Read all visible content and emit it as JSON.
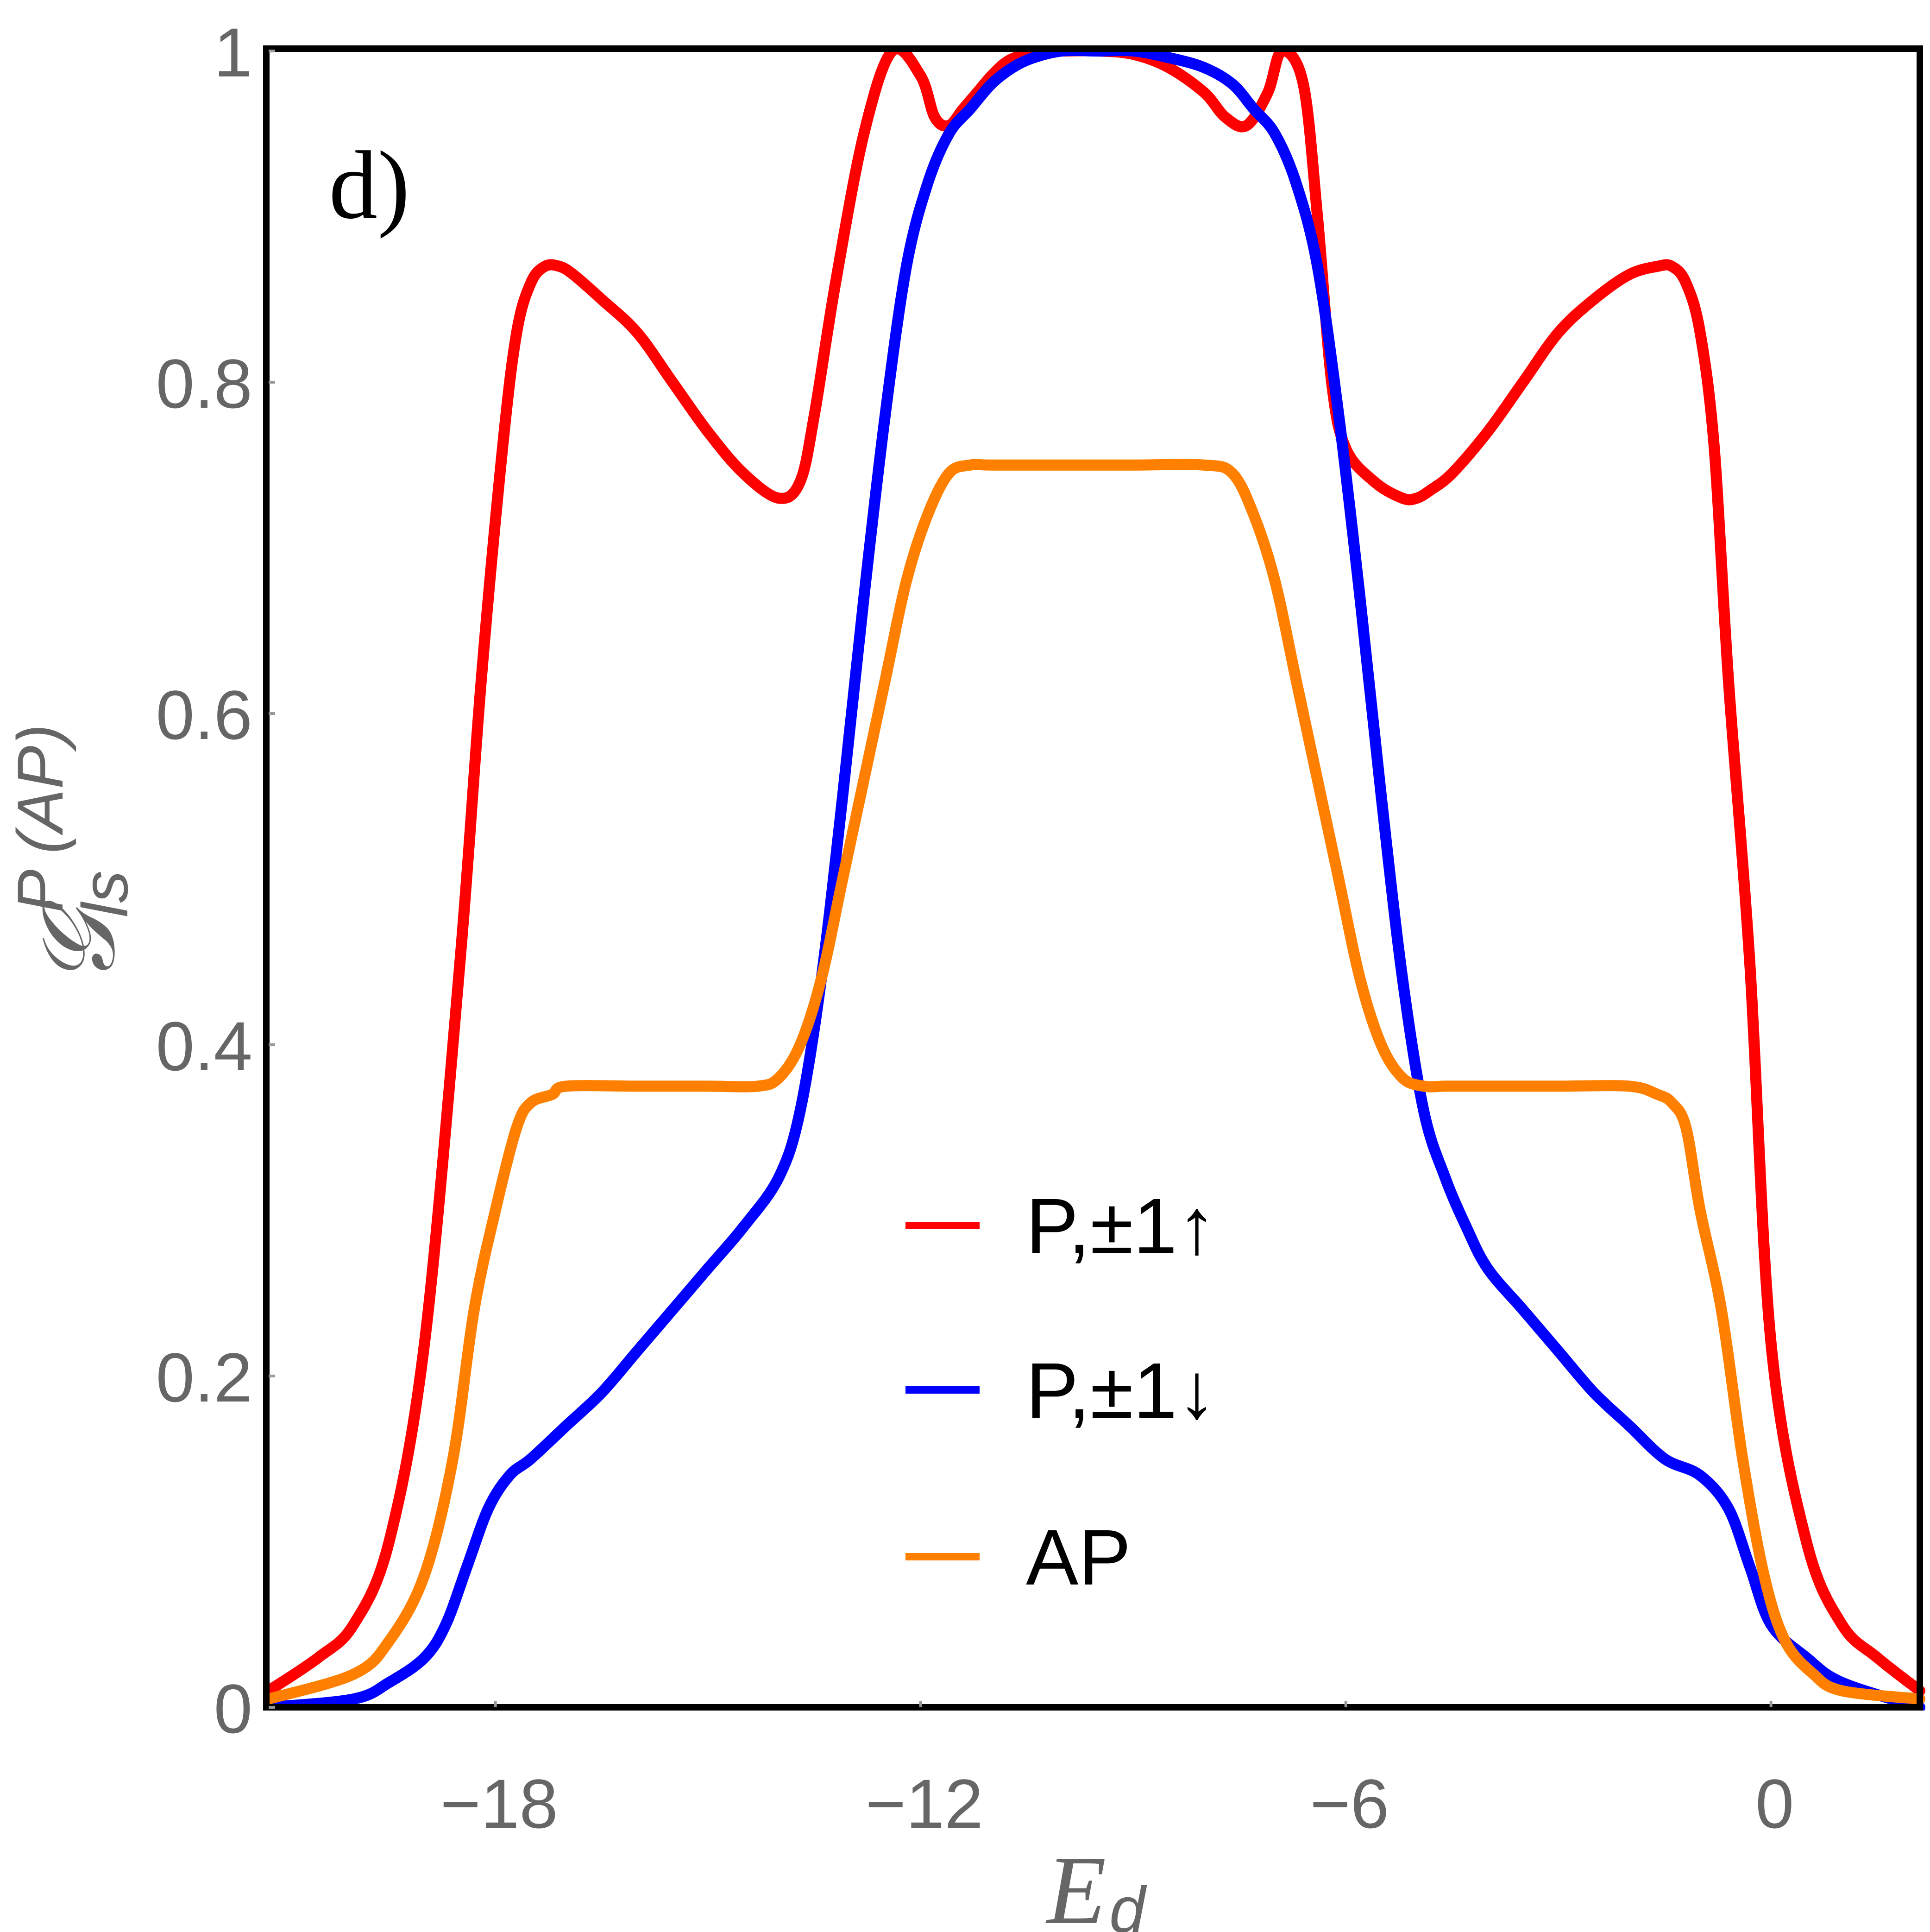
{
  "chart_data": {
    "type": "line",
    "panel_label": "d)",
    "xlabel": {
      "main": "E",
      "sub": "d"
    },
    "ylabel": {
      "main": "𝒢",
      "sub": "ls",
      "sup": "P (AP)"
    },
    "xlim": [
      -21.2,
      2.1
    ],
    "ylim": [
      0,
      1
    ],
    "xticks": [
      -18,
      -12,
      -6,
      0
    ],
    "xtick_labels": [
      "−18",
      "−12",
      "−6",
      "0"
    ],
    "yticks": [
      0,
      0.2,
      0.4,
      0.6,
      0.8,
      1
    ],
    "ytick_labels": [
      "0",
      "0.2",
      "0.4",
      "0.6",
      "0.8",
      "1"
    ],
    "legend_position": "center-bottom",
    "series": [
      {
        "name": "P,±1↑",
        "color": "#ff0000",
        "x": [
          -21.2,
          -20.5,
          -20.0,
          -19.5,
          -19.0,
          -18.5,
          -18.2,
          -17.9,
          -17.7,
          -17.5,
          -17.3,
          -17.1,
          -16.9,
          -16.5,
          -16.0,
          -15.5,
          -15.0,
          -14.5,
          -14.0,
          -13.7,
          -13.5,
          -13.2,
          -12.8,
          -12.4,
          -12.0,
          -11.8,
          -11.6,
          -11.4,
          -11.2,
          -11.0,
          -10.8,
          -10.6,
          -10.3,
          -10.0,
          -9.5,
          -9.0,
          -8.5,
          -8.0,
          -7.7,
          -7.4,
          -7.1,
          -6.9,
          -6.6,
          -6.4,
          -6.2,
          -6.0,
          -5.6,
          -5.2,
          -5.0,
          -4.8,
          -4.5,
          -4.0,
          -3.5,
          -3.0,
          -2.5,
          -2.0,
          -1.6,
          -1.4,
          -1.2,
          -1.0,
          -0.8,
          -0.6,
          -0.3,
          0.0,
          0.5,
          1.0,
          1.5,
          2.1
        ],
        "values": [
          0.01,
          0.03,
          0.05,
          0.1,
          0.22,
          0.45,
          0.62,
          0.76,
          0.83,
          0.86,
          0.87,
          0.87,
          0.865,
          0.85,
          0.83,
          0.8,
          0.77,
          0.745,
          0.73,
          0.74,
          0.78,
          0.86,
          0.95,
          1.0,
          0.985,
          0.96,
          0.955,
          0.965,
          0.975,
          0.985,
          0.993,
          0.997,
          1.0,
          1.0,
          1.0,
          0.998,
          0.99,
          0.975,
          0.96,
          0.955,
          0.975,
          1.0,
          0.98,
          0.9,
          0.8,
          0.76,
          0.74,
          0.73,
          0.73,
          0.735,
          0.745,
          0.77,
          0.8,
          0.83,
          0.85,
          0.865,
          0.87,
          0.87,
          0.86,
          0.83,
          0.76,
          0.62,
          0.45,
          0.22,
          0.1,
          0.05,
          0.03,
          0.01
        ]
      },
      {
        "name": "P,±1↓",
        "color": "#0000ff",
        "x": [
          -21.2,
          -20.0,
          -19.5,
          -19.0,
          -18.7,
          -18.4,
          -18.1,
          -17.8,
          -17.5,
          -17.0,
          -16.5,
          -16.0,
          -15.5,
          -15.0,
          -14.5,
          -14.0,
          -13.7,
          -13.4,
          -13.1,
          -12.8,
          -12.5,
          -12.2,
          -11.9,
          -11.6,
          -11.3,
          -11.0,
          -10.7,
          -10.4,
          -10.0,
          -9.5,
          -9.0,
          -8.5,
          -8.0,
          -7.6,
          -7.3,
          -7.0,
          -6.7,
          -6.4,
          -6.1,
          -5.8,
          -5.5,
          -5.2,
          -4.9,
          -4.6,
          -4.3,
          -4.0,
          -3.5,
          -3.0,
          -2.5,
          -2.0,
          -1.5,
          -1.0,
          -0.6,
          -0.3,
          0.0,
          0.5,
          1.0,
          2.1
        ],
        "values": [
          0.0,
          0.005,
          0.015,
          0.03,
          0.05,
          0.085,
          0.12,
          0.14,
          0.15,
          0.17,
          0.19,
          0.215,
          0.24,
          0.265,
          0.29,
          0.32,
          0.36,
          0.44,
          0.55,
          0.67,
          0.78,
          0.87,
          0.92,
          0.95,
          0.965,
          0.98,
          0.99,
          0.996,
          1.0,
          1.0,
          1.0,
          0.996,
          0.99,
          0.98,
          0.965,
          0.95,
          0.92,
          0.87,
          0.78,
          0.67,
          0.55,
          0.44,
          0.36,
          0.32,
          0.29,
          0.265,
          0.24,
          0.215,
          0.19,
          0.17,
          0.15,
          0.14,
          0.12,
          0.085,
          0.05,
          0.03,
          0.015,
          0.0
        ]
      },
      {
        "name": "AP",
        "color": "#ff8000",
        "x": [
          -21.2,
          -20.0,
          -19.5,
          -19.0,
          -18.6,
          -18.3,
          -18.0,
          -17.7,
          -17.5,
          -17.2,
          -17.0,
          -16.0,
          -15.0,
          -14.3,
          -14.0,
          -13.7,
          -13.4,
          -13.1,
          -12.8,
          -12.5,
          -12.2,
          -11.9,
          -11.6,
          -11.3,
          -11.0,
          -10.0,
          -9.0,
          -8.0,
          -7.6,
          -7.3,
          -7.0,
          -6.7,
          -6.4,
          -6.1,
          -5.8,
          -5.5,
          -5.2,
          -4.9,
          -4.6,
          -4.3,
          -4.0,
          -3.0,
          -2.0,
          -1.6,
          -1.4,
          -1.2,
          -1.0,
          -0.7,
          -0.4,
          -0.1,
          0.2,
          0.6,
          1.0,
          2.1
        ],
        "values": [
          0.005,
          0.02,
          0.04,
          0.08,
          0.15,
          0.24,
          0.3,
          0.35,
          0.365,
          0.37,
          0.375,
          0.375,
          0.375,
          0.375,
          0.38,
          0.4,
          0.44,
          0.5,
          0.56,
          0.62,
          0.68,
          0.72,
          0.745,
          0.75,
          0.75,
          0.75,
          0.75,
          0.75,
          0.745,
          0.72,
          0.68,
          0.62,
          0.56,
          0.5,
          0.44,
          0.4,
          0.38,
          0.375,
          0.375,
          0.375,
          0.375,
          0.375,
          0.375,
          0.37,
          0.365,
          0.35,
          0.3,
          0.24,
          0.15,
          0.08,
          0.04,
          0.02,
          0.01,
          0.005
        ]
      }
    ]
  }
}
